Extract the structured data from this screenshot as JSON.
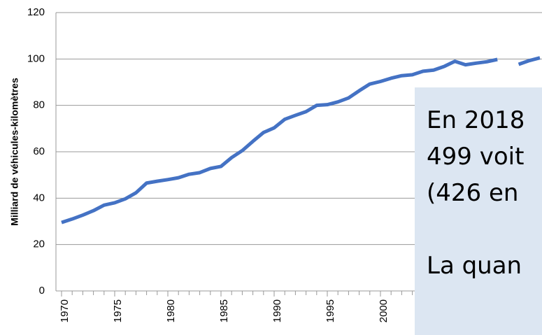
{
  "chart_data": {
    "type": "line",
    "y_label": "Milliard de véhicules-kilomètres",
    "x": [
      1970,
      1971,
      1972,
      1973,
      1974,
      1975,
      1976,
      1977,
      1978,
      1979,
      1980,
      1981,
      1982,
      1983,
      1984,
      1985,
      1986,
      1987,
      1988,
      1989,
      1990,
      1991,
      1992,
      1993,
      1994,
      1995,
      1996,
      1997,
      1998,
      1999,
      2000,
      2001,
      2002,
      2003,
      2004,
      2005,
      2006,
      2007,
      2008,
      2009,
      2010,
      2011,
      2012,
      2013,
      2014,
      2015
    ],
    "series": [
      {
        "color": "#4472c4",
        "values": [
          29.5,
          31,
          32.7,
          34.6,
          37,
          38,
          39.7,
          42.3,
          46.5,
          47.3,
          48,
          48.8,
          50.3,
          51,
          52.8,
          53.7,
          57.5,
          60.5,
          64.5,
          68.3,
          70.3,
          74,
          75.7,
          77.3,
          80,
          80.3,
          81.5,
          83.2,
          86.3,
          89.2,
          90.3,
          91.7,
          92.8,
          93.2,
          94.7,
          95.2,
          96.8,
          99,
          97.5,
          98.2,
          98.8,
          99.8,
          null,
          97.7,
          99.3,
          100.5
        ]
      }
    ],
    "xlim": [
      1970,
      2015
    ],
    "xticks": [
      1970,
      1975,
      1980,
      1985,
      1990,
      1995,
      2000
    ],
    "ylim": [
      0,
      120
    ],
    "yticks": [
      0,
      20,
      40,
      60,
      80,
      100,
      120
    ],
    "grid": true,
    "annotation": [
      "En 2018",
      "499 voit",
      "(426 en",
      "La quan"
    ]
  }
}
